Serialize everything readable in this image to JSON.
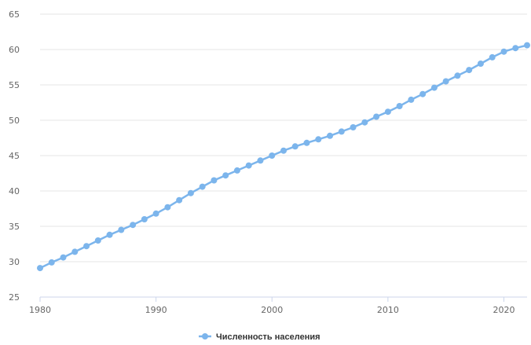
{
  "chart_data": {
    "type": "line",
    "title": "",
    "xlabel": "",
    "ylabel": "",
    "xlim": [
      1980,
      2022
    ],
    "ylim": [
      25,
      65
    ],
    "x_ticks": [
      1980,
      1990,
      2000,
      2010,
      2020
    ],
    "y_ticks": [
      25,
      30,
      35,
      40,
      45,
      50,
      55,
      60,
      65
    ],
    "grid": "horizontal",
    "legend_position": "bottom-center",
    "series": [
      {
        "name": "Численность населения",
        "color": "#7cb5ec",
        "x": [
          1980,
          1981,
          1982,
          1983,
          1984,
          1985,
          1986,
          1987,
          1988,
          1989,
          1990,
          1991,
          1992,
          1993,
          1994,
          1995,
          1996,
          1997,
          1998,
          1999,
          2000,
          2001,
          2002,
          2003,
          2004,
          2005,
          2006,
          2007,
          2008,
          2009,
          2010,
          2011,
          2012,
          2013,
          2014,
          2015,
          2016,
          2017,
          2018,
          2019,
          2020,
          2021,
          2022
        ],
        "values": [
          29.1,
          29.9,
          30.6,
          31.4,
          32.2,
          33.0,
          33.8,
          34.5,
          35.2,
          36.0,
          36.8,
          37.7,
          38.7,
          39.7,
          40.6,
          41.5,
          42.2,
          42.9,
          43.6,
          44.3,
          45.0,
          45.7,
          46.3,
          46.8,
          47.3,
          47.8,
          48.4,
          49.0,
          49.7,
          50.5,
          51.2,
          52.0,
          52.9,
          53.7,
          54.6,
          55.5,
          56.3,
          57.1,
          58.0,
          58.9,
          59.7,
          60.2,
          60.6
        ]
      }
    ]
  }
}
